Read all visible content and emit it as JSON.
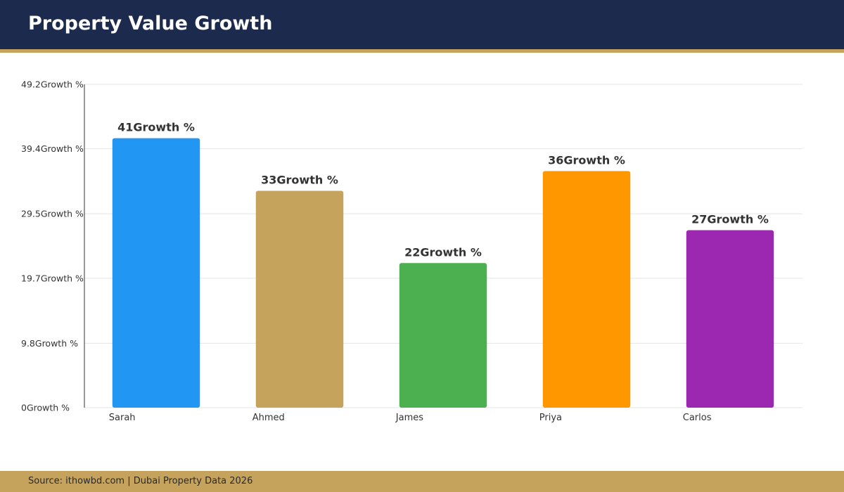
{
  "header": {
    "title": "Property Value Growth"
  },
  "footer": {
    "source": "Source: ithowbd.com | Dubai Property Data 2026"
  },
  "colors": {
    "header_bg": "#1c2a4d",
    "accent": "#c5a35c"
  },
  "chart_data": {
    "type": "bar",
    "title": "Property Value Growth",
    "categories": [
      "Sarah",
      "Ahmed",
      "James",
      "Priya",
      "Carlos"
    ],
    "values": [
      41,
      33,
      22,
      36,
      27
    ],
    "data_labels": [
      "41Growth %",
      "33Growth %",
      "22Growth %",
      "36Growth %",
      "27Growth %"
    ],
    "bar_colors": [
      "#2196f3",
      "#c5a35c",
      "#4caf50",
      "#ff9800",
      "#9c27b0"
    ],
    "y_ticks": [
      0,
      9.8,
      19.7,
      29.5,
      39.4,
      49.2
    ],
    "y_tick_labels": [
      "0Growth %",
      "9.8Growth %",
      "19.7Growth %",
      "29.5Growth %",
      "39.4Growth %",
      "49.2Growth %"
    ],
    "ylim": [
      0,
      49.2
    ],
    "grid": true,
    "xlabel": "",
    "ylabel": ""
  }
}
